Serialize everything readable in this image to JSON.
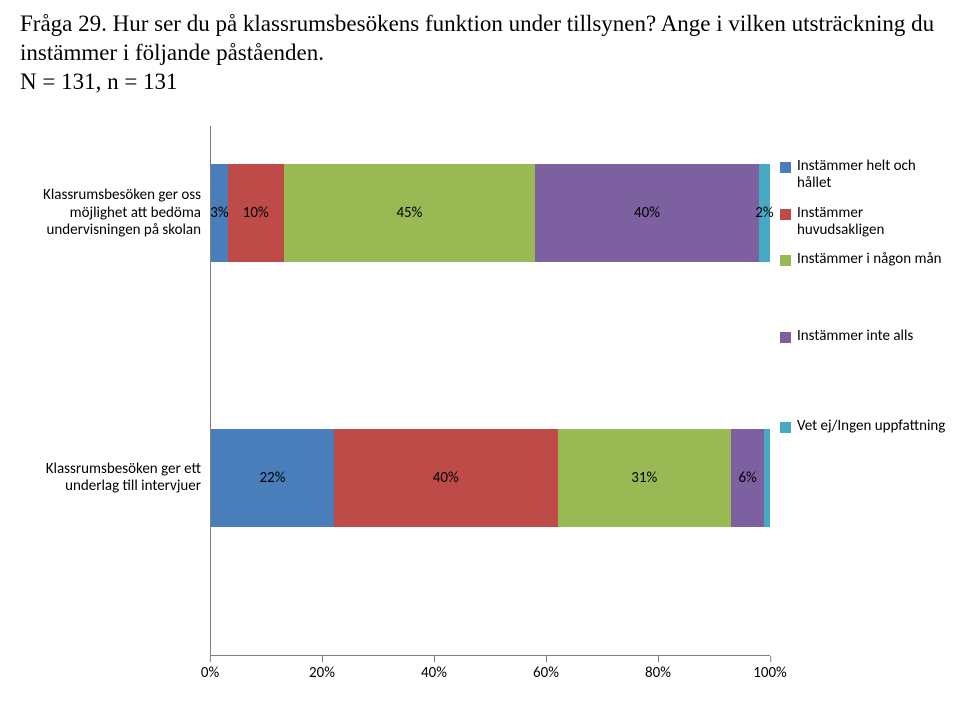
{
  "title": {
    "line1": "Fråga 29. Hur ser du på klassrumsbesökens funktion under tillsynen? Ange i vilken utsträckning du",
    "line2": "instämmer i följande påståenden.",
    "line3": "N = 131, n = 131"
  },
  "chart": {
    "type": "stacked-bar-horizontal",
    "background_color": "#ffffff",
    "axis_color": "#808080",
    "tick_label_fontsize": 15,
    "bar_label_fontsize": 15,
    "category_label_fontsize": 15,
    "xlim": [
      0,
      100
    ],
    "xtick_step": 20,
    "xticks": [
      0,
      20,
      40,
      60,
      80,
      100
    ],
    "xtick_labels": [
      "0%",
      "20%",
      "40%",
      "60%",
      "80%",
      "100%"
    ],
    "series": [
      {
        "key": "helt",
        "label": "Instämmer helt och hållet",
        "color": "#4a7ebb"
      },
      {
        "key": "huvud",
        "label": "Instämmer huvudsakligen",
        "color": "#be4b48"
      },
      {
        "key": "nagon",
        "label": "Instämmer i någon mån",
        "color": "#98b954"
      },
      {
        "key": "inte",
        "label": "Instämmer inte alls",
        "color": "#7d60a0"
      },
      {
        "key": "vetej",
        "label": "Vet ej/Ingen uppfattning",
        "color": "#46aac5"
      }
    ],
    "rows": [
      {
        "label": "Klassrumsbesöken ger oss möjlighet att bedöma undervisningen på skolan",
        "top_pct": 7,
        "segments": [
          {
            "series": "helt",
            "value": 3,
            "text": "3%",
            "show": true
          },
          {
            "series": "huvud",
            "value": 10,
            "text": "10%",
            "show": true
          },
          {
            "series": "nagon",
            "value": 45,
            "text": "45%",
            "show": true
          },
          {
            "series": "inte",
            "value": 40,
            "text": "40%",
            "show": true
          },
          {
            "series": "vetej",
            "value": 2,
            "text": "2%",
            "show": true
          }
        ],
        "legend_groups": [
          {
            "top_pct": 6,
            "items": [
              "helt",
              "huvud",
              "nagon"
            ]
          },
          {
            "top_pct": 38,
            "items": [
              "inte"
            ]
          }
        ]
      },
      {
        "label": "Klassrumsbesöken ger ett underlag till intervjuer",
        "top_pct": 57,
        "segments": [
          {
            "series": "helt",
            "value": 22,
            "text": "22%",
            "show": true
          },
          {
            "series": "huvud",
            "value": 40,
            "text": "40%",
            "show": true
          },
          {
            "series": "nagon",
            "value": 31,
            "text": "31%",
            "show": true
          },
          {
            "series": "inte",
            "value": 6,
            "text": "6%",
            "show": true
          },
          {
            "series": "vetej",
            "value": 1,
            "text": "",
            "show": false
          }
        ],
        "legend_groups": [
          {
            "top_pct": 55,
            "items": [
              "vetej"
            ]
          }
        ]
      }
    ]
  }
}
